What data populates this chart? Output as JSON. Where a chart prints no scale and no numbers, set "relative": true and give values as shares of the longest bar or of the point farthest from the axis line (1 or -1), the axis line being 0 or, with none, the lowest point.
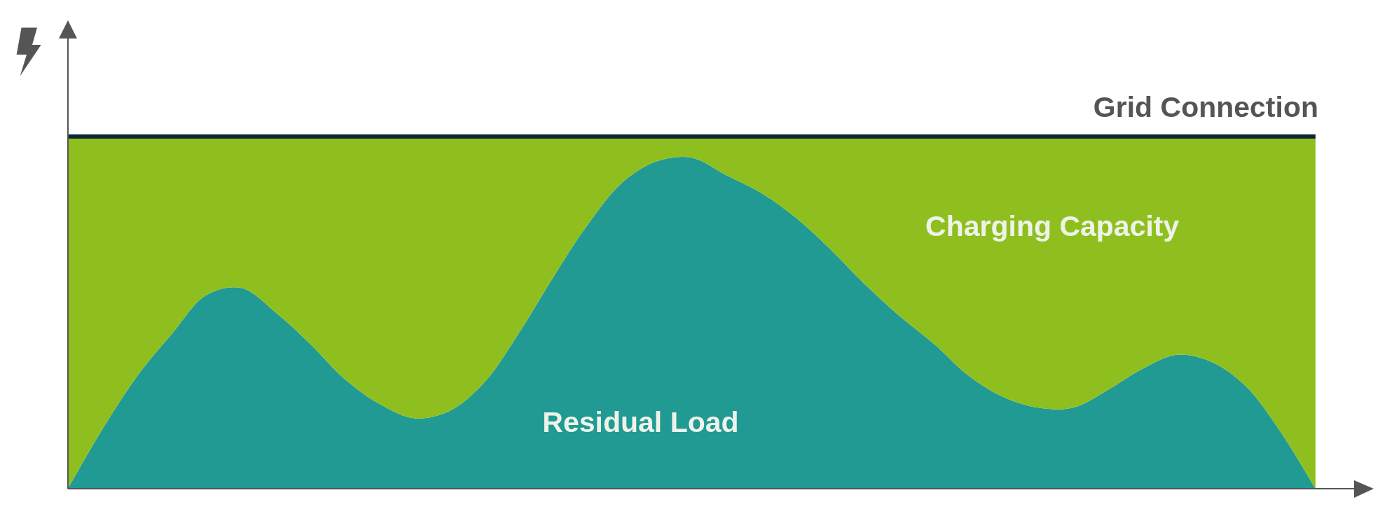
{
  "chart_data": {
    "type": "area",
    "relative": true,
    "stacked": true,
    "categories": [
      null,
      null,
      null,
      null,
      null,
      null,
      null,
      null,
      null,
      null,
      null,
      null,
      null,
      null,
      null,
      null,
      null,
      null,
      null,
      null,
      null,
      null,
      null,
      null,
      null,
      null,
      null,
      null,
      null,
      null,
      null,
      null,
      null,
      null,
      null,
      null,
      null
    ],
    "series": [
      {
        "name": "Residual Load",
        "color": "#209a93",
        "values": [
          0,
          0.17,
          0.32,
          0.44,
          0.55,
          0.57,
          0.5,
          0.41,
          0.31,
          0.24,
          0.2,
          0.22,
          0.3,
          0.44,
          0.6,
          0.75,
          0.87,
          0.93,
          0.94,
          0.89,
          0.84,
          0.77,
          0.68,
          0.58,
          0.49,
          0.41,
          0.32,
          0.26,
          0.23,
          0.23,
          0.28,
          0.34,
          0.38,
          0.36,
          0.29,
          0.16,
          0
        ]
      },
      {
        "name": "Charging Capacity",
        "color": "#8fbf1f",
        "values": [
          1,
          0.83,
          0.68,
          0.56,
          0.45,
          0.43,
          0.5,
          0.59,
          0.69,
          0.76,
          0.8,
          0.78,
          0.7,
          0.56,
          0.4,
          0.25,
          0.13,
          0.07,
          0.06,
          0.11,
          0.16,
          0.23,
          0.32,
          0.42,
          0.51,
          0.59,
          0.68,
          0.74,
          0.77,
          0.77,
          0.72,
          0.66,
          0.62,
          0.64,
          0.71,
          0.84,
          1
        ]
      }
    ],
    "ref_lines": [
      {
        "axis": "y",
        "value": 1,
        "label": "Grid Connection",
        "color": "#0c2733"
      }
    ]
  }
}
